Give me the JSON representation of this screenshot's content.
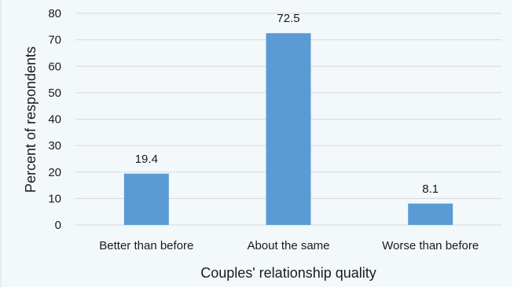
{
  "chart_data": {
    "type": "bar",
    "categories": [
      "Better than before",
      "About the same",
      "Worse than before"
    ],
    "values": [
      19.4,
      72.5,
      8.1
    ],
    "data_labels": [
      "19.4",
      "72.5",
      "8.1"
    ],
    "title": "",
    "xlabel": "Couples' relationship quality",
    "ylabel": "Percent of respondents",
    "ylim": [
      0,
      80
    ],
    "yticks": [
      "0",
      "10",
      "20",
      "30",
      "40",
      "50",
      "60",
      "70",
      "80"
    ],
    "grid": true,
    "legend": "none",
    "bar_color": "#5b9bd5",
    "grid_color": "#d9d9d9"
  }
}
